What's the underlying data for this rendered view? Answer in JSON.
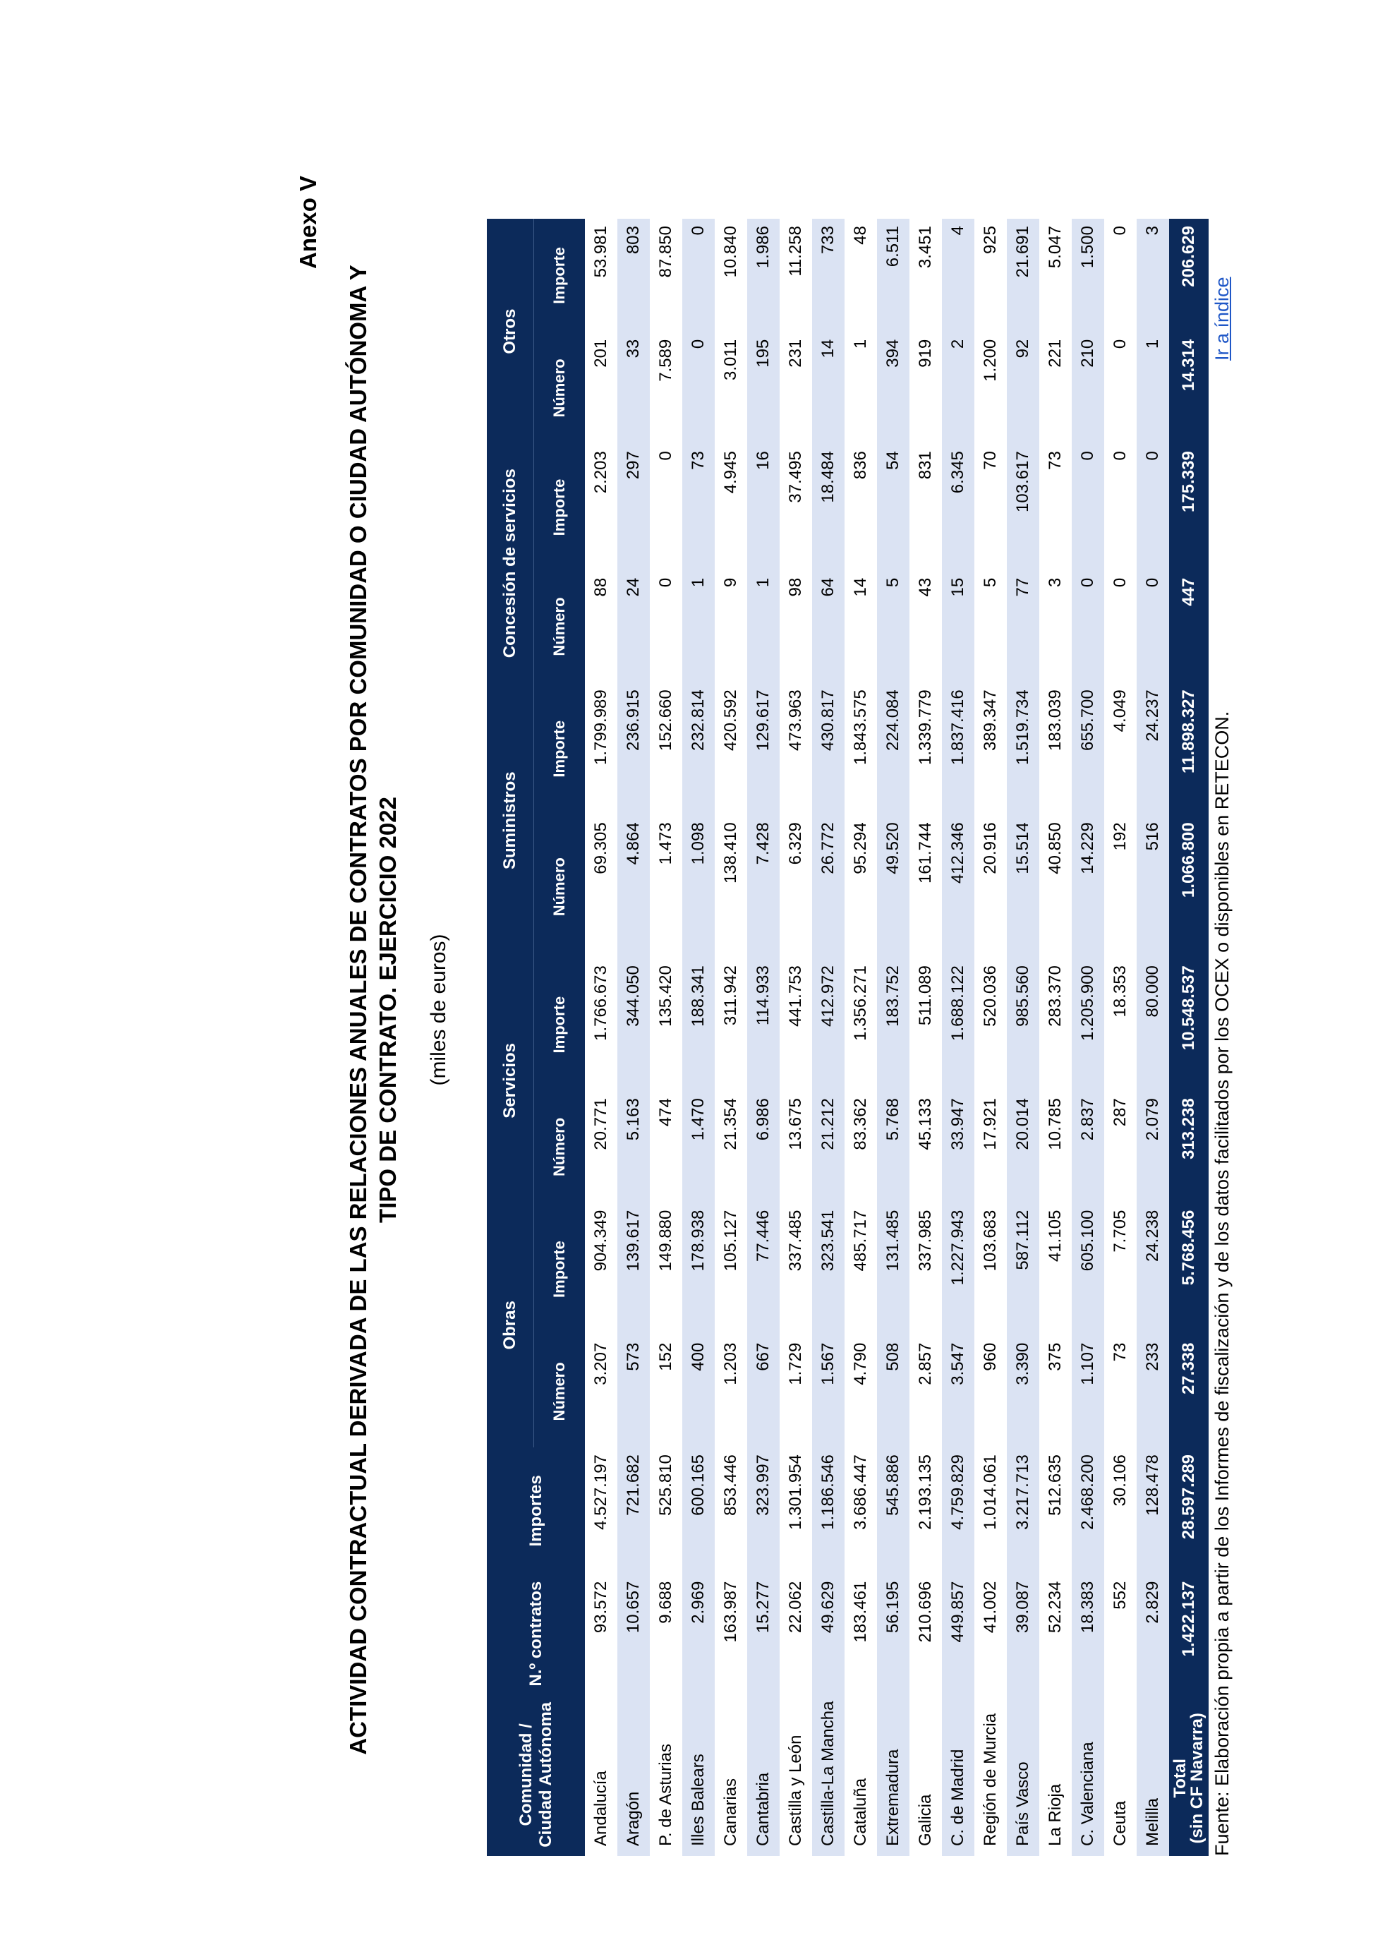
{
  "annex": "Anexo V",
  "title_line1": "ACTIVIDAD CONTRACTUAL DERIVADA DE LAS RELACIONES ANUALES DE CONTRATOS POR COMUNIDAD O CIUDAD AUTÓNOMA Y",
  "title_line2": "TIPO DE CONTRATO. EJERCICIO 2022",
  "units": "(miles de euros)",
  "headers": {
    "comunidad": "Comunidad / Ciudad Autónoma",
    "n_contratos": "N.º contratos",
    "importes": "Importes",
    "obras": "Obras",
    "servicios": "Servicios",
    "suministros": "Suministros",
    "concesion": "Concesión de servicios",
    "otros": "Otros",
    "numero": "Número",
    "importe": "Importe"
  },
  "rows": [
    [
      "Andalucía",
      "93.572",
      "4.527.197",
      "3.207",
      "904.349",
      "20.771",
      "1.766.673",
      "69.305",
      "1.799.989",
      "88",
      "2.203",
      "201",
      "53.981"
    ],
    [
      "Aragón",
      "10.657",
      "721.682",
      "573",
      "139.617",
      "5.163",
      "344.050",
      "4.864",
      "236.915",
      "24",
      "297",
      "33",
      "803"
    ],
    [
      "P. de Asturias",
      "9.688",
      "525.810",
      "152",
      "149.880",
      "474",
      "135.420",
      "1.473",
      "152.660",
      "0",
      "0",
      "7.589",
      "87.850"
    ],
    [
      "Illes Balears",
      "2.969",
      "600.165",
      "400",
      "178.938",
      "1.470",
      "188.341",
      "1.098",
      "232.814",
      "1",
      "73",
      "0",
      "0"
    ],
    [
      "Canarias",
      "163.987",
      "853.446",
      "1.203",
      "105.127",
      "21.354",
      "311.942",
      "138.410",
      "420.592",
      "9",
      "4.945",
      "3.011",
      "10.840"
    ],
    [
      "Cantabria",
      "15.277",
      "323.997",
      "667",
      "77.446",
      "6.986",
      "114.933",
      "7.428",
      "129.617",
      "1",
      "16",
      "195",
      "1.986"
    ],
    [
      "Castilla y León",
      "22.062",
      "1.301.954",
      "1.729",
      "337.485",
      "13.675",
      "441.753",
      "6.329",
      "473.963",
      "98",
      "37.495",
      "231",
      "11.258"
    ],
    [
      "Castilla-La Mancha",
      "49.629",
      "1.186.546",
      "1.567",
      "323.541",
      "21.212",
      "412.972",
      "26.772",
      "430.817",
      "64",
      "18.484",
      "14",
      "733"
    ],
    [
      "Cataluña",
      "183.461",
      "3.686.447",
      "4.790",
      "485.717",
      "83.362",
      "1.356.271",
      "95.294",
      "1.843.575",
      "14",
      "836",
      "1",
      "48"
    ],
    [
      "Extremadura",
      "56.195",
      "545.886",
      "508",
      "131.485",
      "5.768",
      "183.752",
      "49.520",
      "224.084",
      "5",
      "54",
      "394",
      "6.511"
    ],
    [
      "Galicia",
      "210.696",
      "2.193.135",
      "2.857",
      "337.985",
      "45.133",
      "511.089",
      "161.744",
      "1.339.779",
      "43",
      "831",
      "919",
      "3.451"
    ],
    [
      "C. de Madrid",
      "449.857",
      "4.759.829",
      "3.547",
      "1.227.943",
      "33.947",
      "1.688.122",
      "412.346",
      "1.837.416",
      "15",
      "6.345",
      "2",
      "4"
    ],
    [
      "Región de Murcia",
      "41.002",
      "1.014.061",
      "960",
      "103.683",
      "17.921",
      "520.036",
      "20.916",
      "389.347",
      "5",
      "70",
      "1.200",
      "925"
    ],
    [
      "País Vasco",
      "39.087",
      "3.217.713",
      "3.390",
      "587.112",
      "20.014",
      "985.560",
      "15.514",
      "1.519.734",
      "77",
      "103.617",
      "92",
      "21.691"
    ],
    [
      "La Rioja",
      "52.234",
      "512.635",
      "375",
      "41.105",
      "10.785",
      "283.370",
      "40.850",
      "183.039",
      "3",
      "73",
      "221",
      "5.047"
    ],
    [
      "C. Valenciana",
      "18.383",
      "2.468.200",
      "1.107",
      "605.100",
      "2.837",
      "1.205.900",
      "14.229",
      "655.700",
      "0",
      "0",
      "210",
      "1.500"
    ],
    [
      "Ceuta",
      "552",
      "30.106",
      "73",
      "7.705",
      "287",
      "18.353",
      "192",
      "4.049",
      "0",
      "0",
      "0",
      "0"
    ],
    [
      "Melilla",
      "2.829",
      "128.478",
      "233",
      "24.238",
      "2.079",
      "80.000",
      "516",
      "24.237",
      "0",
      "0",
      "1",
      "3"
    ]
  ],
  "total": {
    "label_line1": "Total",
    "label_line2": "(sin CF Navarra)",
    "values": [
      "1.422.137",
      "28.597.289",
      "27.338",
      "5.768.456",
      "313.238",
      "10.548.537",
      "1.066.800",
      "11.898.327",
      "447",
      "175.339",
      "14.314",
      "206.629"
    ]
  },
  "source": "Fuente: Elaboración propia a partir de los Informes de fiscalización y de los datos facilitados por los OCEX o disponibles en RETECON.",
  "link": "Ir a índice"
}
